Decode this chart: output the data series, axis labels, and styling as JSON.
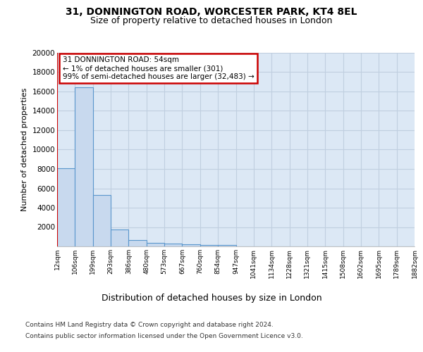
{
  "title1": "31, DONNINGTON ROAD, WORCESTER PARK, KT4 8EL",
  "title2": "Size of property relative to detached houses in London",
  "xlabel": "Distribution of detached houses by size in London",
  "ylabel": "Number of detached properties",
  "footnote1": "Contains HM Land Registry data © Crown copyright and database right 2024.",
  "footnote2": "Contains public sector information licensed under the Open Government Licence v3.0.",
  "bin_labels": [
    "12sqm",
    "106sqm",
    "199sqm",
    "293sqm",
    "386sqm",
    "480sqm",
    "573sqm",
    "667sqm",
    "760sqm",
    "854sqm",
    "947sqm",
    "1041sqm",
    "1134sqm",
    "1228sqm",
    "1321sqm",
    "1415sqm",
    "1508sqm",
    "1602sqm",
    "1695sqm",
    "1789sqm",
    "1882sqm"
  ],
  "bar_values": [
    8100,
    16400,
    5300,
    1750,
    650,
    340,
    270,
    200,
    170,
    150,
    0,
    0,
    0,
    0,
    0,
    0,
    0,
    0,
    0,
    0
  ],
  "bar_color": "#c8d9ee",
  "bar_edge_color": "#5a96cc",
  "annotation_text": "31 DONNINGTON ROAD: 54sqm\n← 1% of detached houses are smaller (301)\n99% of semi-detached houses are larger (32,483) →",
  "annotation_box_color": "#ffffff",
  "annotation_box_edge_color": "#cc0000",
  "vline_color": "#cc0000",
  "background_color": "#dce8f5",
  "grid_color": "#c0cfe0",
  "ylim": [
    0,
    20000
  ],
  "yticks": [
    0,
    2000,
    4000,
    6000,
    8000,
    10000,
    12000,
    14000,
    16000,
    18000,
    20000
  ]
}
